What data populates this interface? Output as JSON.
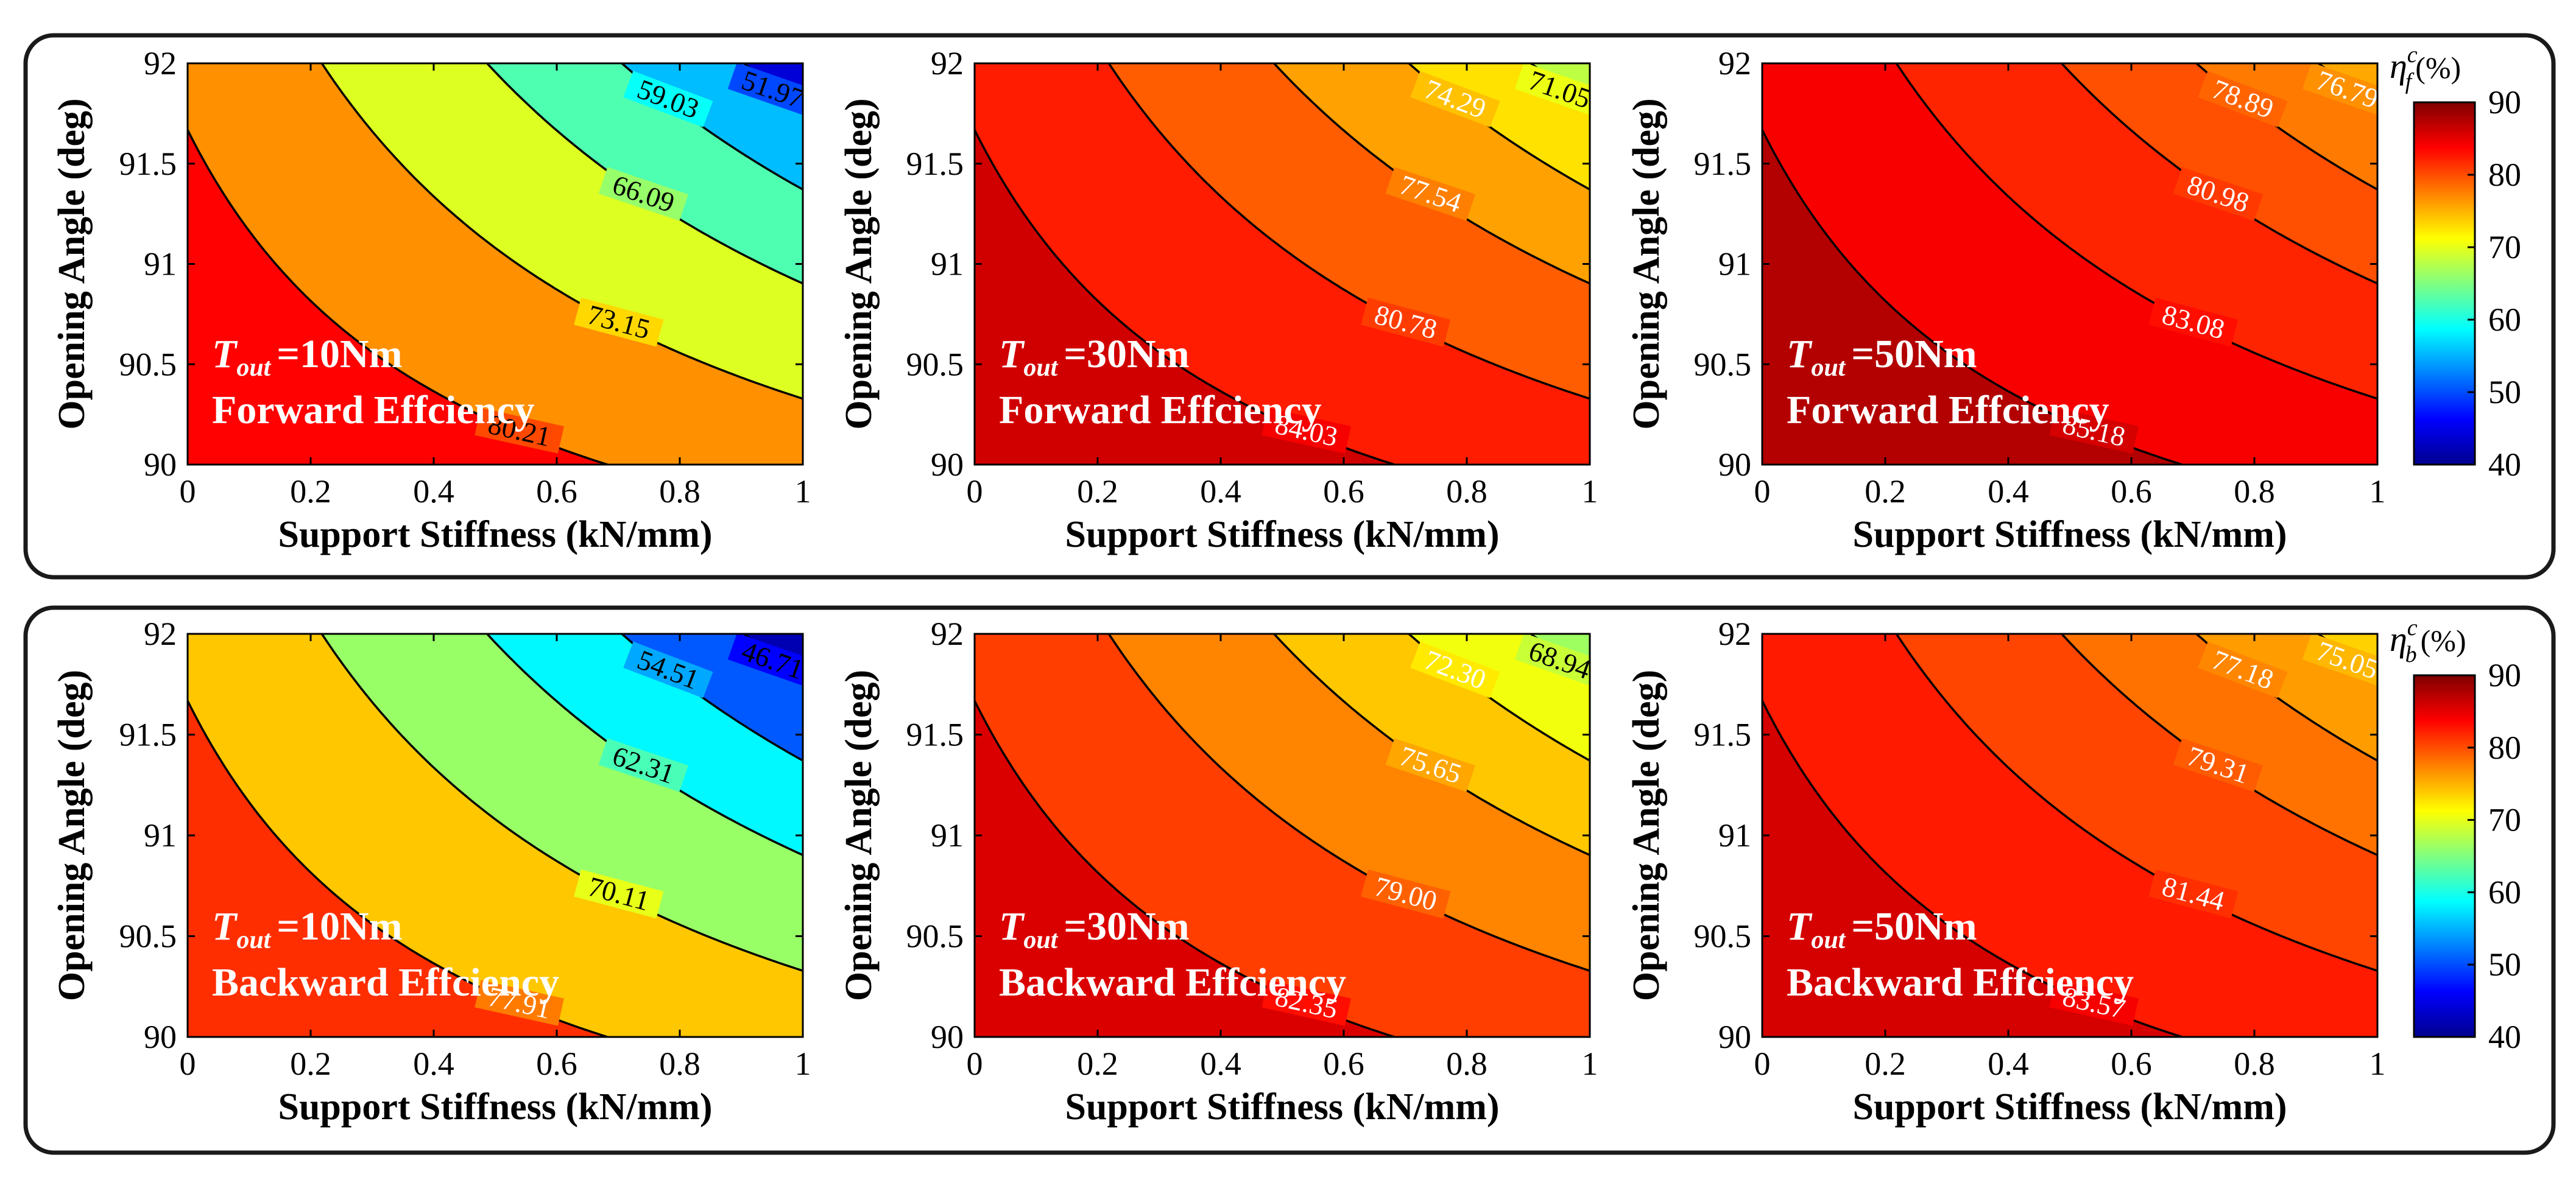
{
  "colors": {
    "colormap": [
      "#00008f",
      "#0000ff",
      "#0080ff",
      "#00ffff",
      "#80ff80",
      "#ffff00",
      "#ff8000",
      "#ff0000",
      "#800000"
    ],
    "frame": "#1a1a1a",
    "inner_label": "#ffffff",
    "contour_line": "#000000"
  },
  "colorbars": [
    {
      "symbol": "η",
      "superscript": "c",
      "subscript": "f",
      "unit": "(%)",
      "range": [
        40,
        90
      ],
      "ticks": [
        "40",
        "50",
        "60",
        "70",
        "80",
        "90"
      ]
    },
    {
      "symbol": "η",
      "superscript": "c",
      "subscript": "b",
      "unit": "(%)",
      "range": [
        40,
        90
      ],
      "ticks": [
        "40",
        "50",
        "60",
        "70",
        "80",
        "90"
      ]
    }
  ],
  "chart_data": [
    {
      "type": "contour",
      "row": 0,
      "col": 0,
      "torque_symbol": "T",
      "torque_subscript": "out",
      "torque_value": "=10Nm",
      "caption": "Forward Effciency",
      "xlabel": "Support Stiffness (kN/mm)",
      "ylabel": "Opening Angle (deg)",
      "xlim": [
        0,
        1
      ],
      "ylim": [
        90,
        92
      ],
      "xticks": [
        "0",
        "0.2",
        "0.4",
        "0.6",
        "0.8",
        "1"
      ],
      "yticks": [
        "90",
        "90.5",
        "91",
        "91.5",
        "92"
      ],
      "levels": [
        51.97,
        59.03,
        66.09,
        73.15,
        80.21
      ],
      "level_labels": [
        "51.97",
        "59.03",
        "66.09",
        "73.15",
        "80.21"
      ],
      "band_values": [
        44,
        55.5,
        62.6,
        69.6,
        76.7,
        83.7
      ]
    },
    {
      "type": "contour",
      "row": 0,
      "col": 1,
      "torque_symbol": "T",
      "torque_subscript": "out",
      "torque_value": "=30Nm",
      "caption": "Forward Effciency",
      "xlabel": "Support Stiffness (kN/mm)",
      "ylabel": "Opening Angle (deg)",
      "xlim": [
        0,
        1
      ],
      "ylim": [
        90,
        92
      ],
      "xticks": [
        "0",
        "0.2",
        "0.4",
        "0.6",
        "0.8",
        "1"
      ],
      "yticks": [
        "90",
        "90.5",
        "91",
        "91.5",
        "92"
      ],
      "levels": [
        71.05,
        74.29,
        77.54,
        80.78,
        84.03
      ],
      "level_labels": [
        "71.05",
        "74.29",
        "77.54",
        "80.78",
        "84.03"
      ],
      "band_values": [
        68,
        72.7,
        75.9,
        79.2,
        82.4,
        86
      ]
    },
    {
      "type": "contour",
      "row": 0,
      "col": 2,
      "torque_symbol": "T",
      "torque_subscript": "out",
      "torque_value": "=50Nm",
      "caption": "Forward Effciency",
      "xlabel": "Support Stiffness (kN/mm)",
      "ylabel": "Opening Angle (deg)",
      "xlim": [
        0,
        1
      ],
      "ylim": [
        90,
        92
      ],
      "xticks": [
        "0",
        "0.2",
        "0.4",
        "0.6",
        "0.8",
        "1"
      ],
      "yticks": [
        "90",
        "90.5",
        "91",
        "91.5",
        "92"
      ],
      "levels": [
        76.79,
        78.89,
        80.98,
        83.08,
        85.18
      ],
      "level_labels": [
        "76.79",
        "78.89",
        "80.98",
        "83.08",
        "85.18"
      ],
      "band_values": [
        75.5,
        77.8,
        79.9,
        82,
        84.1,
        87.5
      ]
    },
    {
      "type": "contour",
      "row": 1,
      "col": 0,
      "torque_symbol": "T",
      "torque_subscript": "out",
      "torque_value": "=10Nm",
      "caption": "Backward Effciency",
      "xlabel": "Support Stiffness (kN/mm)",
      "ylabel": "Opening Angle (deg)",
      "xlim": [
        0,
        1
      ],
      "ylim": [
        90,
        92
      ],
      "xticks": [
        "0",
        "0.2",
        "0.4",
        "0.6",
        "0.8",
        "1"
      ],
      "yticks": [
        "90",
        "90.5",
        "91",
        "91.5",
        "92"
      ],
      "levels": [
        46.71,
        54.51,
        62.31,
        70.11,
        77.91
      ],
      "level_labels": [
        "46.71",
        "54.51",
        "62.31",
        "70.11",
        "77.91"
      ],
      "band_values": [
        42,
        50.6,
        58.4,
        66.2,
        74,
        81.5
      ]
    },
    {
      "type": "contour",
      "row": 1,
      "col": 1,
      "torque_symbol": "T",
      "torque_subscript": "out",
      "torque_value": "=30Nm",
      "caption": "Backward Effciency",
      "xlabel": "Support Stiffness (kN/mm)",
      "ylabel": "Opening Angle (deg)",
      "xlim": [
        0,
        1
      ],
      "ylim": [
        90,
        92
      ],
      "xticks": [
        "0",
        "0.2",
        "0.4",
        "0.6",
        "0.8",
        "1"
      ],
      "yticks": [
        "90",
        "90.5",
        "91",
        "91.5",
        "92"
      ],
      "levels": [
        68.94,
        72.3,
        75.65,
        79.0,
        82.35
      ],
      "level_labels": [
        "68.94",
        "72.30",
        "75.65",
        "79.00",
        "82.35"
      ],
      "band_values": [
        66.5,
        70.6,
        74,
        77.3,
        80.7,
        85.5
      ]
    },
    {
      "type": "contour",
      "row": 1,
      "col": 2,
      "torque_symbol": "T",
      "torque_subscript": "out",
      "torque_value": "=50Nm",
      "caption": "Backward Effciency",
      "xlabel": "Support Stiffness (kN/mm)",
      "ylabel": "Opening Angle (deg)",
      "xlim": [
        0,
        1
      ],
      "ylim": [
        90,
        92
      ],
      "xticks": [
        "0",
        "0.2",
        "0.4",
        "0.6",
        "0.8",
        "1"
      ],
      "yticks": [
        "90",
        "90.5",
        "91",
        "91.5",
        "92"
      ],
      "levels": [
        75.05,
        77.18,
        79.31,
        81.44,
        83.57
      ],
      "level_labels": [
        "75.05",
        "77.18",
        "79.31",
        "81.44",
        "83.57"
      ],
      "band_values": [
        73.5,
        76.1,
        78.2,
        80.4,
        82.5,
        85.8
      ]
    }
  ]
}
